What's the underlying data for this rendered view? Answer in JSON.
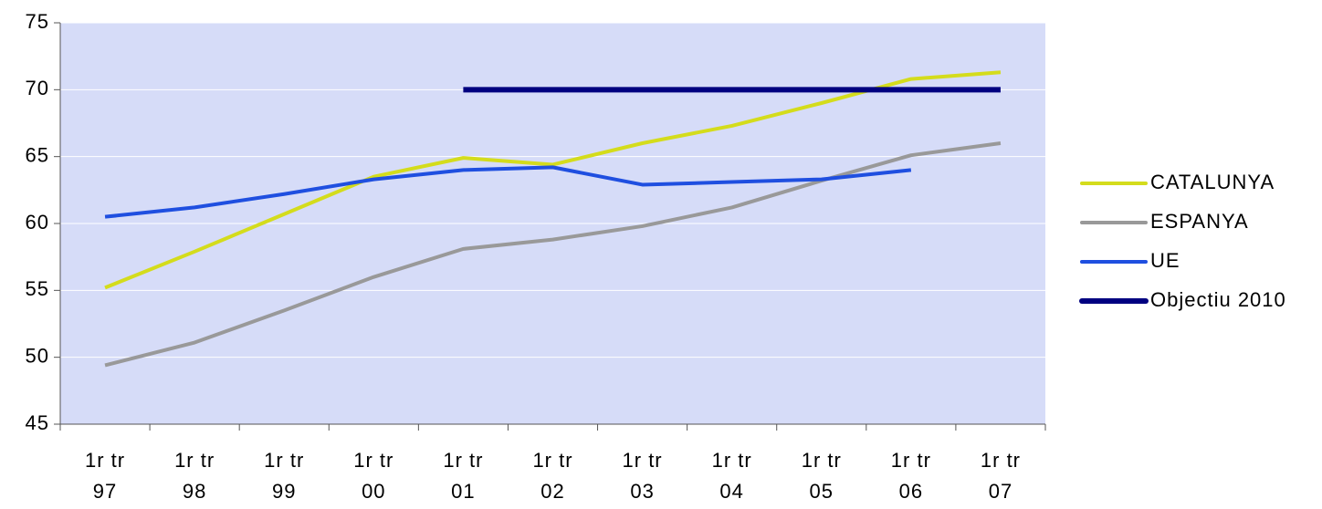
{
  "chart_data": {
    "type": "line",
    "categories": [
      "1r tr 97",
      "1r tr 98",
      "1r tr 99",
      "1r tr 00",
      "1r tr 01",
      "1r tr 02",
      "1r tr 03",
      "1r tr 04",
      "1r tr 05",
      "1r tr 06",
      "1r tr 07"
    ],
    "series": [
      {
        "name": "CATALUNYA",
        "color": "#d4dc1c",
        "values": [
          55.2,
          57.9,
          60.7,
          63.5,
          64.9,
          64.4,
          66.0,
          67.3,
          69.0,
          70.8,
          71.3
        ]
      },
      {
        "name": "ESPANYA",
        "color": "#999999",
        "values": [
          49.4,
          51.1,
          53.5,
          56.0,
          58.1,
          58.8,
          59.8,
          61.2,
          63.2,
          65.1,
          66.0
        ]
      },
      {
        "name": "UE",
        "color": "#1f4fe0",
        "values": [
          60.5,
          61.2,
          62.2,
          63.3,
          64.0,
          64.2,
          62.9,
          63.1,
          63.3,
          64.0,
          null
        ]
      },
      {
        "name": "Objectiu 2010",
        "color": "#000080",
        "values": [
          null,
          null,
          null,
          null,
          70,
          70,
          70,
          70,
          70,
          70,
          70
        ]
      }
    ],
    "ylim": [
      45,
      75
    ],
    "yticks": [
      45,
      50,
      55,
      60,
      65,
      70,
      75
    ],
    "grid": true,
    "legend": "right"
  }
}
